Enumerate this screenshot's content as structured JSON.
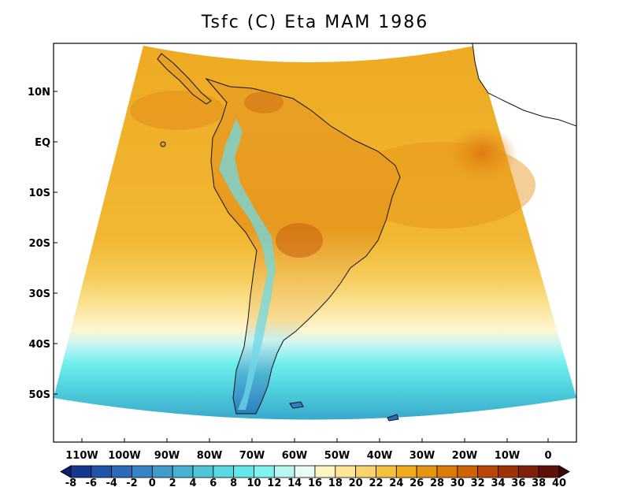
{
  "title": "Tsfc (C) Eta MAM 1986",
  "y_ticks": [
    "10N",
    "EQ",
    "10S",
    "20S",
    "30S",
    "40S",
    "50S"
  ],
  "x_ticks": [
    "110W",
    "100W",
    "90W",
    "80W",
    "70W",
    "60W",
    "50W",
    "40W",
    "30W",
    "20W",
    "10W",
    "0"
  ],
  "colorbar": {
    "labels": [
      "-8",
      "-6",
      "-4",
      "-2",
      "0",
      "2",
      "4",
      "6",
      "8",
      "10",
      "12",
      "14",
      "16",
      "18",
      "20",
      "22",
      "24",
      "26",
      "28",
      "30",
      "32",
      "34",
      "36",
      "38",
      "40"
    ],
    "colors": [
      "#0b1f6e",
      "#14388f",
      "#1f54a8",
      "#2a6cb9",
      "#3585c4",
      "#3f9ccb",
      "#48b2d2",
      "#4fc6d8",
      "#58d8e0",
      "#63e8e8",
      "#7ef3f0",
      "#b7f7f2",
      "#e9fbf5",
      "#fff4c4",
      "#fde59a",
      "#f9d36b",
      "#f5c040",
      "#f0ab1e",
      "#e79410",
      "#dc7b0a",
      "#cf6205",
      "#ba4705",
      "#9f3205",
      "#80200a",
      "#601008",
      "#3d0608"
    ]
  }
}
